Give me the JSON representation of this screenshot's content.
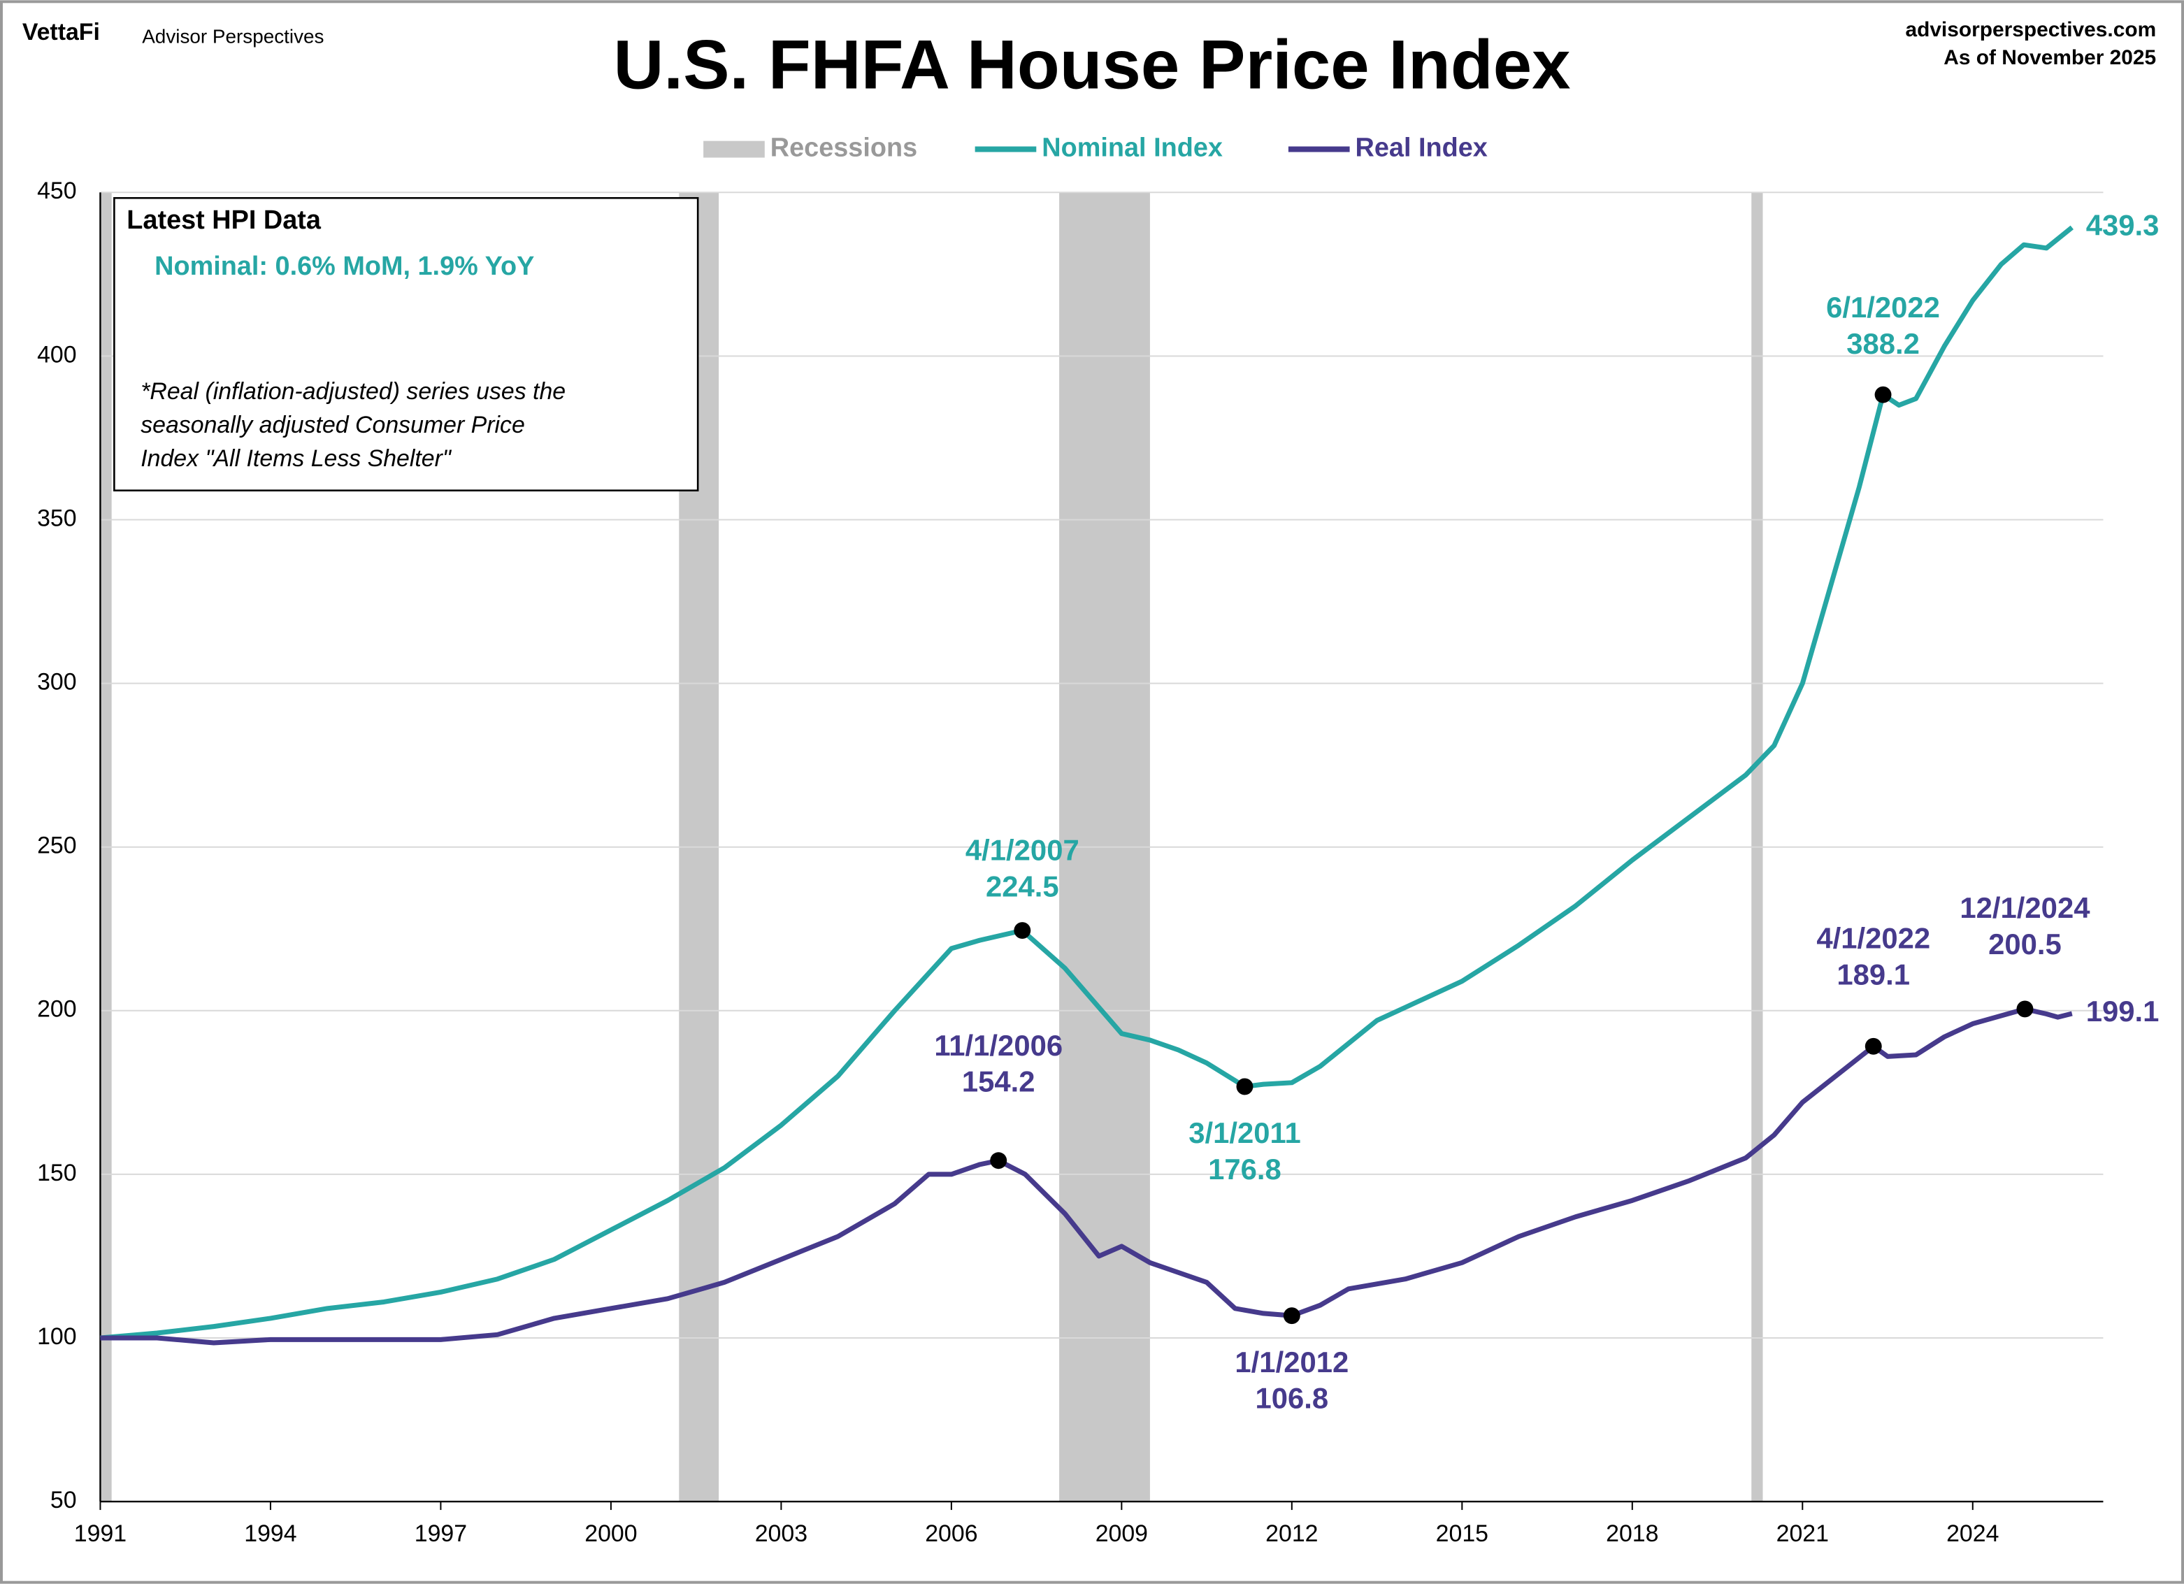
{
  "chart_data": {
    "type": "line",
    "title": "U.S. FHFA House Price Index",
    "brand": "VettaFi",
    "publisher": "Advisor Perspectives",
    "source": "advisorperspectives.com",
    "as_of": "As of November 2025",
    "info_box": {
      "heading": "Latest HPI Data",
      "nominal": "Nominal:  0.6% MoM, 1.9% YoY",
      "note": [
        "*Real (inflation-adjusted) series uses the",
        "seasonally adjusted Consumer Price",
        "Index \"All Items Less Shelter\""
      ]
    },
    "xlim": [
      1991,
      2026.3
    ],
    "xticks": [
      1991,
      1994,
      1997,
      2000,
      2003,
      2006,
      2009,
      2012,
      2015,
      2018,
      2021,
      2024
    ],
    "ylim": [
      50,
      450
    ],
    "yticks": [
      50,
      100,
      150,
      200,
      250,
      300,
      350,
      400,
      450
    ],
    "grid": true,
    "recessions": {
      "name": "Recessions",
      "color": "#c8c8c8",
      "spans": [
        [
          1990.6,
          1991.2
        ],
        [
          2001.2,
          2001.9
        ],
        [
          2007.9,
          2009.5
        ],
        [
          2020.1,
          2020.3
        ]
      ]
    },
    "series": [
      {
        "name": "Nominal Index",
        "color": "#26a6a4",
        "last_label": "439.3",
        "x": [
          1991,
          1992,
          1993,
          1994,
          1995,
          1996,
          1997,
          1998,
          1999,
          2000,
          2001,
          2002,
          2003,
          2004,
          2005,
          2006,
          2006.5,
          2007.25,
          2008,
          2008.5,
          2009,
          2009.5,
          2010,
          2010.5,
          2011.17,
          2011.5,
          2012,
          2012.5,
          2013,
          2013.5,
          2014,
          2015,
          2016,
          2017,
          2018,
          2019,
          2020,
          2020.5,
          2021,
          2021.5,
          2022,
          2022.42,
          2022.7,
          2023,
          2023.5,
          2024,
          2024.5,
          2024.9,
          2025.3,
          2025.75
        ],
        "values": [
          100,
          101.5,
          103.5,
          106,
          109,
          111,
          114,
          118,
          124,
          133,
          142,
          152,
          165,
          180,
          200,
          219,
          221.5,
          224.5,
          213,
          203,
          193,
          191,
          188,
          184,
          176.8,
          177.5,
          178,
          183,
          190,
          197,
          201,
          209,
          220,
          232,
          246,
          259,
          272,
          281,
          300,
          330,
          360,
          388.2,
          385,
          387,
          403,
          417,
          428,
          434,
          433,
          439.3
        ]
      },
      {
        "name": "Real Index",
        "color": "#463a8c",
        "last_label": "199.1",
        "x": [
          1991,
          1992,
          1993,
          1994,
          1995,
          1996,
          1997,
          1998,
          1999,
          2000,
          2001,
          2002,
          2003,
          2004,
          2005,
          2005.6,
          2006,
          2006.5,
          2006.83,
          2007.3,
          2008,
          2008.6,
          2009,
          2009.5,
          2010,
          2010.5,
          2011,
          2011.5,
          2012,
          2012.5,
          2013,
          2014,
          2015,
          2016,
          2017,
          2018,
          2019,
          2020,
          2020.5,
          2021,
          2022.25,
          2022.5,
          2023,
          2023.5,
          2024,
          2024.92,
          2025.3,
          2025.5,
          2025.75
        ],
        "values": [
          100,
          100,
          98.5,
          99.5,
          99.5,
          99.5,
          99.5,
          101,
          106,
          109,
          112,
          117,
          124,
          131,
          141,
          150,
          150,
          153,
          154.2,
          150,
          138,
          125,
          128,
          123,
          120,
          117,
          109,
          107.5,
          106.8,
          110,
          115,
          118,
          123,
          131,
          137,
          142,
          148,
          155,
          162,
          172,
          189.1,
          186,
          186.5,
          192,
          196,
          200.5,
          199,
          198,
          199.1
        ]
      }
    ],
    "annotations": [
      {
        "series": 0,
        "x": 2007.25,
        "y": 224.5,
        "date": "4/1/2007",
        "label": "224.5"
      },
      {
        "series": 0,
        "x": 2011.17,
        "y": 176.8,
        "date": "3/1/2011",
        "label": "176.8"
      },
      {
        "series": 0,
        "x": 2022.42,
        "y": 388.2,
        "date": "6/1/2022",
        "label": "388.2"
      },
      {
        "series": 1,
        "x": 2006.83,
        "y": 154.2,
        "date": "11/1/2006",
        "label": "154.2"
      },
      {
        "series": 1,
        "x": 2012,
        "y": 106.8,
        "date": "1/1/2012",
        "label": "106.8"
      },
      {
        "series": 1,
        "x": 2022.25,
        "y": 189.1,
        "date": "4/1/2022",
        "label": "189.1"
      },
      {
        "series": 1,
        "x": 2024.92,
        "y": 200.5,
        "date": "12/1/2024",
        "label": "200.5"
      }
    ]
  }
}
